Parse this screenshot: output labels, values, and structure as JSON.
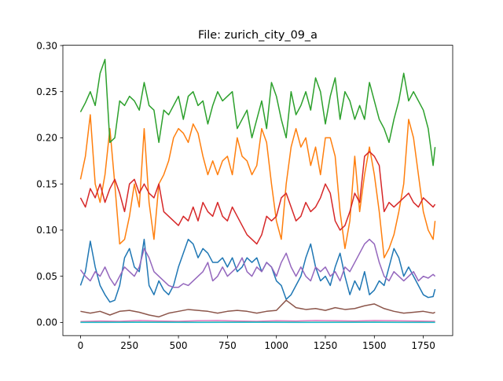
{
  "chart_data": {
    "type": "line",
    "title": "File: zurich_city_09_a",
    "xlabel": "",
    "ylabel": "",
    "xlim": [
      -90,
      1900
    ],
    "ylim": [
      -0.0143,
      0.3003
    ],
    "x_ticks": [
      0,
      250,
      500,
      750,
      1000,
      1250,
      1500,
      1750
    ],
    "x_tick_labels": [
      "0",
      "250",
      "500",
      "750",
      "1000",
      "1250",
      "1500",
      "1750"
    ],
    "y_ticks": [
      0.0,
      0.05,
      0.1,
      0.15,
      0.2,
      0.25,
      0.3
    ],
    "y_tick_labels": [
      "0.00",
      "0.05",
      "0.10",
      "0.15",
      "0.20",
      "0.25",
      "0.30"
    ],
    "grid": false,
    "legend": "none",
    "series": [
      {
        "color": "#1f77b4",
        "x": [
          0,
          25,
          50,
          75,
          100,
          125,
          150,
          175,
          200,
          225,
          250,
          275,
          300,
          325,
          350,
          375,
          400,
          425,
          450,
          475,
          500,
          525,
          550,
          575,
          600,
          625,
          650,
          675,
          700,
          725,
          750,
          775,
          800,
          825,
          850,
          875,
          900,
          925,
          950,
          975,
          1000,
          1025,
          1050,
          1075,
          1100,
          1125,
          1150,
          1175,
          1200,
          1225,
          1250,
          1275,
          1300,
          1325,
          1350,
          1375,
          1400,
          1425,
          1450,
          1475,
          1500,
          1525,
          1550,
          1575,
          1600,
          1625,
          1650,
          1675,
          1700,
          1725,
          1750,
          1775,
          1800,
          1810
        ],
        "y": [
          0.04,
          0.055,
          0.088,
          0.06,
          0.04,
          0.03,
          0.022,
          0.024,
          0.04,
          0.07,
          0.08,
          0.06,
          0.055,
          0.09,
          0.04,
          0.03,
          0.045,
          0.035,
          0.03,
          0.04,
          0.06,
          0.075,
          0.09,
          0.085,
          0.07,
          0.08,
          0.075,
          0.065,
          0.065,
          0.07,
          0.06,
          0.07,
          0.055,
          0.06,
          0.07,
          0.065,
          0.07,
          0.055,
          0.065,
          0.06,
          0.045,
          0.04,
          0.025,
          0.03,
          0.04,
          0.05,
          0.07,
          0.085,
          0.06,
          0.045,
          0.05,
          0.04,
          0.06,
          0.075,
          0.05,
          0.03,
          0.045,
          0.035,
          0.055,
          0.03,
          0.035,
          0.045,
          0.04,
          0.06,
          0.08,
          0.07,
          0.05,
          0.06,
          0.05,
          0.04,
          0.03,
          0.027,
          0.028,
          0.036
        ]
      },
      {
        "color": "#ff7f0e",
        "x": [
          0,
          25,
          50,
          75,
          100,
          125,
          150,
          175,
          200,
          225,
          250,
          275,
          300,
          325,
          350,
          375,
          400,
          425,
          450,
          475,
          500,
          525,
          550,
          575,
          600,
          625,
          650,
          675,
          700,
          725,
          750,
          775,
          800,
          825,
          850,
          875,
          900,
          925,
          950,
          975,
          1000,
          1025,
          1050,
          1075,
          1100,
          1125,
          1150,
          1175,
          1200,
          1225,
          1250,
          1275,
          1300,
          1325,
          1350,
          1375,
          1400,
          1425,
          1450,
          1475,
          1500,
          1525,
          1550,
          1575,
          1600,
          1625,
          1650,
          1675,
          1700,
          1725,
          1750,
          1775,
          1800,
          1810
        ],
        "y": [
          0.155,
          0.18,
          0.225,
          0.15,
          0.13,
          0.16,
          0.21,
          0.15,
          0.085,
          0.09,
          0.115,
          0.15,
          0.125,
          0.21,
          0.13,
          0.09,
          0.15,
          0.16,
          0.175,
          0.2,
          0.21,
          0.205,
          0.195,
          0.215,
          0.205,
          0.18,
          0.16,
          0.175,
          0.16,
          0.175,
          0.18,
          0.16,
          0.2,
          0.18,
          0.175,
          0.16,
          0.17,
          0.21,
          0.195,
          0.15,
          0.11,
          0.09,
          0.15,
          0.19,
          0.21,
          0.19,
          0.2,
          0.17,
          0.19,
          0.16,
          0.2,
          0.2,
          0.18,
          0.12,
          0.08,
          0.11,
          0.18,
          0.12,
          0.16,
          0.19,
          0.16,
          0.12,
          0.07,
          0.08,
          0.095,
          0.12,
          0.15,
          0.22,
          0.2,
          0.16,
          0.12,
          0.1,
          0.09,
          0.11
        ]
      },
      {
        "color": "#2ca02c",
        "x": [
          0,
          25,
          50,
          75,
          100,
          125,
          150,
          175,
          200,
          225,
          250,
          275,
          300,
          325,
          350,
          375,
          400,
          425,
          450,
          475,
          500,
          525,
          550,
          575,
          600,
          625,
          650,
          675,
          700,
          725,
          750,
          775,
          800,
          825,
          850,
          875,
          900,
          925,
          950,
          975,
          1000,
          1025,
          1050,
          1075,
          1100,
          1125,
          1150,
          1175,
          1200,
          1225,
          1250,
          1275,
          1300,
          1325,
          1350,
          1375,
          1400,
          1425,
          1450,
          1475,
          1500,
          1525,
          1550,
          1575,
          1600,
          1625,
          1650,
          1675,
          1700,
          1725,
          1750,
          1775,
          1800,
          1810
        ],
        "y": [
          0.228,
          0.238,
          0.25,
          0.235,
          0.27,
          0.285,
          0.195,
          0.2,
          0.24,
          0.235,
          0.245,
          0.24,
          0.23,
          0.26,
          0.235,
          0.23,
          0.195,
          0.23,
          0.225,
          0.235,
          0.245,
          0.22,
          0.245,
          0.25,
          0.235,
          0.24,
          0.215,
          0.235,
          0.25,
          0.24,
          0.245,
          0.25,
          0.21,
          0.22,
          0.23,
          0.2,
          0.22,
          0.24,
          0.21,
          0.26,
          0.245,
          0.22,
          0.2,
          0.25,
          0.225,
          0.235,
          0.25,
          0.23,
          0.265,
          0.25,
          0.215,
          0.245,
          0.265,
          0.22,
          0.25,
          0.24,
          0.22,
          0.235,
          0.22,
          0.26,
          0.24,
          0.22,
          0.21,
          0.195,
          0.22,
          0.24,
          0.27,
          0.24,
          0.25,
          0.24,
          0.23,
          0.21,
          0.17,
          0.19
        ]
      },
      {
        "color": "#d62728",
        "x": [
          0,
          25,
          50,
          75,
          100,
          125,
          150,
          175,
          200,
          225,
          250,
          275,
          300,
          325,
          350,
          375,
          400,
          425,
          450,
          475,
          500,
          525,
          550,
          575,
          600,
          625,
          650,
          675,
          700,
          725,
          750,
          775,
          800,
          825,
          850,
          875,
          900,
          925,
          950,
          975,
          1000,
          1025,
          1050,
          1075,
          1100,
          1125,
          1150,
          1175,
          1200,
          1225,
          1250,
          1275,
          1300,
          1325,
          1350,
          1375,
          1400,
          1425,
          1450,
          1475,
          1500,
          1525,
          1550,
          1575,
          1600,
          1625,
          1650,
          1675,
          1700,
          1725,
          1750,
          1775,
          1800,
          1810
        ],
        "y": [
          0.135,
          0.125,
          0.145,
          0.135,
          0.15,
          0.13,
          0.145,
          0.155,
          0.14,
          0.12,
          0.15,
          0.155,
          0.14,
          0.15,
          0.14,
          0.135,
          0.15,
          0.12,
          0.115,
          0.11,
          0.105,
          0.115,
          0.11,
          0.125,
          0.11,
          0.13,
          0.12,
          0.115,
          0.13,
          0.115,
          0.11,
          0.125,
          0.115,
          0.105,
          0.095,
          0.09,
          0.085,
          0.095,
          0.115,
          0.11,
          0.115,
          0.135,
          0.14,
          0.125,
          0.11,
          0.115,
          0.13,
          0.12,
          0.125,
          0.135,
          0.15,
          0.14,
          0.11,
          0.1,
          0.105,
          0.12,
          0.14,
          0.13,
          0.18,
          0.185,
          0.18,
          0.17,
          0.12,
          0.13,
          0.125,
          0.13,
          0.135,
          0.14,
          0.13,
          0.125,
          0.135,
          0.13,
          0.125,
          0.128
        ]
      },
      {
        "color": "#9467bd",
        "x": [
          0,
          25,
          50,
          75,
          100,
          125,
          150,
          175,
          200,
          225,
          250,
          275,
          300,
          325,
          350,
          375,
          400,
          425,
          450,
          475,
          500,
          525,
          550,
          575,
          600,
          625,
          650,
          675,
          700,
          725,
          750,
          775,
          800,
          825,
          850,
          875,
          900,
          925,
          950,
          975,
          1000,
          1025,
          1050,
          1075,
          1100,
          1125,
          1150,
          1175,
          1200,
          1225,
          1250,
          1275,
          1300,
          1325,
          1350,
          1375,
          1400,
          1425,
          1450,
          1475,
          1500,
          1525,
          1550,
          1575,
          1600,
          1625,
          1650,
          1675,
          1700,
          1725,
          1750,
          1775,
          1800,
          1810
        ],
        "y": [
          0.057,
          0.05,
          0.045,
          0.055,
          0.05,
          0.06,
          0.048,
          0.04,
          0.05,
          0.06,
          0.055,
          0.05,
          0.06,
          0.08,
          0.07,
          0.055,
          0.05,
          0.045,
          0.04,
          0.038,
          0.038,
          0.042,
          0.04,
          0.045,
          0.05,
          0.055,
          0.065,
          0.045,
          0.05,
          0.06,
          0.05,
          0.055,
          0.06,
          0.07,
          0.055,
          0.05,
          0.06,
          0.055,
          0.065,
          0.06,
          0.05,
          0.065,
          0.075,
          0.06,
          0.05,
          0.06,
          0.05,
          0.045,
          0.06,
          0.055,
          0.06,
          0.05,
          0.055,
          0.045,
          0.06,
          0.055,
          0.065,
          0.075,
          0.085,
          0.09,
          0.085,
          0.065,
          0.05,
          0.045,
          0.055,
          0.05,
          0.045,
          0.05,
          0.055,
          0.045,
          0.05,
          0.048,
          0.052,
          0.05
        ]
      },
      {
        "color": "#8c564b",
        "x": [
          0,
          50,
          100,
          150,
          200,
          250,
          300,
          350,
          400,
          450,
          500,
          550,
          600,
          650,
          700,
          750,
          800,
          850,
          900,
          950,
          1000,
          1050,
          1100,
          1150,
          1200,
          1250,
          1300,
          1350,
          1400,
          1450,
          1500,
          1550,
          1600,
          1650,
          1700,
          1750,
          1800,
          1810
        ],
        "y": [
          0.012,
          0.01,
          0.012,
          0.008,
          0.012,
          0.013,
          0.011,
          0.008,
          0.006,
          0.01,
          0.012,
          0.014,
          0.013,
          0.012,
          0.01,
          0.012,
          0.013,
          0.012,
          0.01,
          0.012,
          0.013,
          0.024,
          0.016,
          0.014,
          0.015,
          0.013,
          0.016,
          0.014,
          0.015,
          0.018,
          0.02,
          0.015,
          0.012,
          0.01,
          0.011,
          0.012,
          0.01,
          0.011
        ]
      },
      {
        "color": "#e377c2",
        "x": [
          0,
          100,
          200,
          300,
          400,
          500,
          600,
          700,
          800,
          900,
          1000,
          1100,
          1200,
          1300,
          1400,
          1500,
          1600,
          1700,
          1800,
          1810
        ],
        "y": [
          0.001,
          0.0015,
          0.0012,
          0.002,
          0.0015,
          0.0012,
          0.0018,
          0.002,
          0.0015,
          0.0012,
          0.0018,
          0.0015,
          0.002,
          0.0018,
          0.0015,
          0.002,
          0.0018,
          0.0015,
          0.0012,
          0.0013
        ]
      },
      {
        "color": "#7f7f7f",
        "x": [
          0,
          300,
          600,
          900,
          1200,
          1500,
          1810
        ],
        "y": [
          0.0002,
          0.0003,
          0.0002,
          0.0003,
          0.0002,
          0.0003,
          0.0002
        ]
      },
      {
        "color": "#bcbd22",
        "x": [
          0,
          300,
          600,
          900,
          1200,
          1500,
          1810
        ],
        "y": [
          0.0001,
          0.0002,
          0.0001,
          0.0002,
          0.0001,
          0.0002,
          0.0001
        ]
      },
      {
        "color": "#17becf",
        "x": [
          0,
          300,
          600,
          900,
          1200,
          1500,
          1810
        ],
        "y": [
          0.0,
          0.0001,
          0.0,
          0.0001,
          0.0,
          0.0001,
          0.0
        ]
      }
    ]
  }
}
